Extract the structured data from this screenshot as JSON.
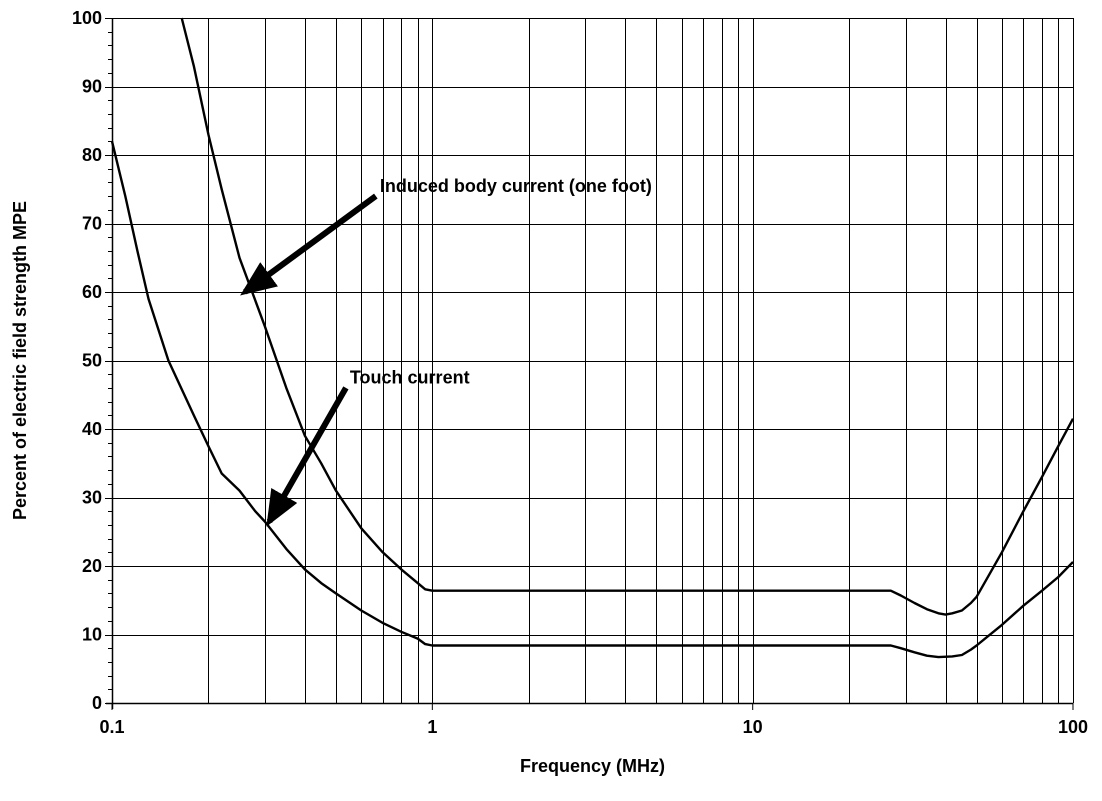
{
  "chart_data": {
    "type": "line",
    "title": "",
    "xlabel": "Frequency (MHz)",
    "ylabel": "Percent of electric field strength MPE",
    "x_scale": "log",
    "xlim": [
      0.1,
      100
    ],
    "ylim": [
      0,
      100
    ],
    "x_ticks": [
      "0.1",
      "1",
      "10",
      "100"
    ],
    "x_tick_values": [
      0.1,
      1,
      10,
      100
    ],
    "y_ticks": [
      "0",
      "10",
      "20",
      "30",
      "40",
      "50",
      "60",
      "70",
      "80",
      "90",
      "100"
    ],
    "y_tick_values": [
      0,
      10,
      20,
      30,
      40,
      50,
      60,
      70,
      80,
      90,
      100
    ],
    "grid": true,
    "series": [
      {
        "label": "Induced body current (one foot)",
        "x": [
          0.165,
          0.18,
          0.2,
          0.22,
          0.25,
          0.3,
          0.35,
          0.4,
          0.45,
          0.5,
          0.6,
          0.7,
          0.8,
          0.9,
          0.95,
          1.0,
          2,
          5,
          10,
          20,
          27,
          29,
          32,
          35,
          38,
          40,
          42,
          45,
          48,
          50,
          60,
          70,
          80,
          90,
          100
        ],
        "y": [
          100,
          93,
          83,
          75,
          65,
          55,
          46,
          39,
          35,
          31,
          25.5,
          22,
          19.5,
          17.5,
          16.6,
          16.4,
          16.4,
          16.4,
          16.4,
          16.4,
          16.4,
          15.7,
          14.6,
          13.7,
          13.1,
          12.9,
          13.1,
          13.5,
          14.6,
          15.5,
          22,
          28,
          33,
          37.5,
          41.5
        ]
      },
      {
        "label": "Touch current",
        "x": [
          0.1,
          0.11,
          0.12,
          0.13,
          0.15,
          0.18,
          0.2,
          0.22,
          0.25,
          0.28,
          0.3,
          0.35,
          0.4,
          0.45,
          0.5,
          0.6,
          0.7,
          0.8,
          0.9,
          0.95,
          1.0,
          2,
          5,
          10,
          20,
          27,
          29,
          32,
          35,
          38,
          42,
          45,
          48,
          50,
          60,
          70,
          80,
          90,
          100
        ],
        "y": [
          82,
          74,
          66,
          59,
          50,
          42,
          37.5,
          33.5,
          31,
          28,
          26.5,
          22.5,
          19.5,
          17.5,
          16,
          13.5,
          11.7,
          10.4,
          9.4,
          8.6,
          8.4,
          8.4,
          8.4,
          8.4,
          8.4,
          8.4,
          8.0,
          7.4,
          6.9,
          6.7,
          6.8,
          7.0,
          7.8,
          8.4,
          11.4,
          14.2,
          16.4,
          18.4,
          20.6
        ]
      }
    ],
    "annotations": [
      {
        "text": "Induced body current (one foot)",
        "arrow_from": [
          0.62,
          74
        ],
        "arrow_to": [
          0.26,
          60
        ],
        "text_x": 0.62,
        "text_y": 75.5
      },
      {
        "text": "Touch current",
        "arrow_from": [
          0.5,
          46
        ],
        "arrow_to": [
          0.31,
          26.5
        ],
        "text_x": 0.5,
        "text_y": 47.5
      }
    ]
  }
}
